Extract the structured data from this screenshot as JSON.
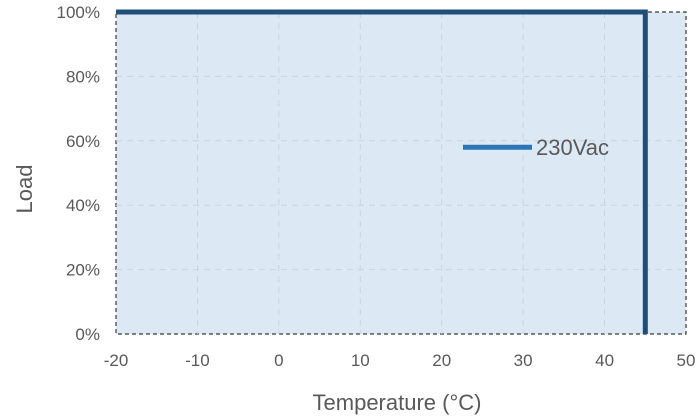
{
  "chart_data": {
    "type": "line",
    "xlabel": "Temperature (°C)",
    "ylabel": "Load",
    "xlim": [
      -20,
      50
    ],
    "ylim": [
      0,
      100
    ],
    "x_ticks": [
      -20,
      -10,
      0,
      10,
      20,
      30,
      40,
      50
    ],
    "y_ticks": [
      0,
      20,
      40,
      60,
      80,
      100
    ],
    "x_tick_labels": [
      "-20",
      "-10",
      "0",
      "10",
      "20",
      "30",
      "40",
      "50"
    ],
    "y_tick_labels": [
      "0%",
      "20%",
      "40%",
      "60%",
      "80%",
      "100%"
    ],
    "grid": true,
    "legend_position": "center-right",
    "series": [
      {
        "name": "230Vac",
        "color": "#1f4e79",
        "legend_color": "#2e75b6",
        "points": [
          [
            -20,
            100
          ],
          [
            45,
            100
          ],
          [
            45,
            0
          ]
        ]
      }
    ]
  }
}
